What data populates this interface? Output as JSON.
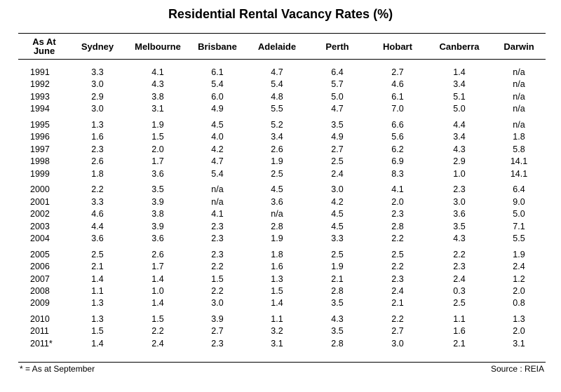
{
  "chart_data": {
    "type": "table",
    "title": "Residential Rental Vacancy Rates (%)",
    "columns": [
      "As At June",
      "Sydney",
      "Melbourne",
      "Brisbane",
      "Adelaide",
      "Perth",
      "Hobart",
      "Canberra",
      "Darwin"
    ],
    "groups": [
      [
        [
          "1991",
          "3.3",
          "4.1",
          "6.1",
          "4.7",
          "6.4",
          "2.7",
          "1.4",
          "n/a"
        ],
        [
          "1992",
          "3.0",
          "4.3",
          "5.4",
          "5.4",
          "5.7",
          "4.6",
          "3.4",
          "n/a"
        ],
        [
          "1993",
          "2.9",
          "3.8",
          "6.0",
          "4.8",
          "5.0",
          "6.1",
          "5.1",
          "n/a"
        ],
        [
          "1994",
          "3.0",
          "3.1",
          "4.9",
          "5.5",
          "4.7",
          "7.0",
          "5.0",
          "n/a"
        ]
      ],
      [
        [
          "1995",
          "1.3",
          "1.9",
          "4.5",
          "5.2",
          "3.5",
          "6.6",
          "4.4",
          "n/a"
        ],
        [
          "1996",
          "1.6",
          "1.5",
          "4.0",
          "3.4",
          "4.9",
          "5.6",
          "3.4",
          "1.8"
        ],
        [
          "1997",
          "2.3",
          "2.0",
          "4.2",
          "2.6",
          "2.7",
          "6.2",
          "4.3",
          "5.8"
        ],
        [
          "1998",
          "2.6",
          "1.7",
          "4.7",
          "1.9",
          "2.5",
          "6.9",
          "2.9",
          "14.1"
        ],
        [
          "1999",
          "1.8",
          "3.6",
          "5.4",
          "2.5",
          "2.4",
          "8.3",
          "1.0",
          "14.1"
        ]
      ],
      [
        [
          "2000",
          "2.2",
          "3.5",
          "n/a",
          "4.5",
          "3.0",
          "4.1",
          "2.3",
          "6.4"
        ],
        [
          "2001",
          "3.3",
          "3.9",
          "n/a",
          "3.6",
          "4.2",
          "2.0",
          "3.0",
          "9.0"
        ],
        [
          "2002",
          "4.6",
          "3.8",
          "4.1",
          "n/a",
          "4.5",
          "2.3",
          "3.6",
          "5.0"
        ],
        [
          "2003",
          "4.4",
          "3.9",
          "2.3",
          "2.8",
          "4.5",
          "2.8",
          "3.5",
          "7.1"
        ],
        [
          "2004",
          "3.6",
          "3.6",
          "2.3",
          "1.9",
          "3.3",
          "2.2",
          "4.3",
          "5.5"
        ]
      ],
      [
        [
          "2005",
          "2.5",
          "2.6",
          "2.3",
          "1.8",
          "2.5",
          "2.5",
          "2.2",
          "1.9"
        ],
        [
          "2006",
          "2.1",
          "1.7",
          "2.2",
          "1.6",
          "1.9",
          "2.2",
          "2.3",
          "2.4"
        ],
        [
          "2007",
          "1.4",
          "1.4",
          "1.5",
          "1.3",
          "2.1",
          "2.3",
          "2.4",
          "1.2"
        ],
        [
          "2008",
          "1.1",
          "1.0",
          "2.2",
          "1.5",
          "2.8",
          "2.4",
          "0.3",
          "2.0"
        ],
        [
          "2009",
          "1.3",
          "1.4",
          "3.0",
          "1.4",
          "3.5",
          "2.1",
          "2.5",
          "0.8"
        ]
      ],
      [
        [
          "2010",
          "1.3",
          "1.5",
          "3.9",
          "1.1",
          "4.3",
          "2.2",
          "1.1",
          "1.3"
        ],
        [
          "2011",
          "1.5",
          "2.2",
          "2.7",
          "3.2",
          "3.5",
          "2.7",
          "1.6",
          "2.0"
        ],
        [
          "2011*",
          "1.4",
          "2.4",
          "2.3",
          "3.1",
          "2.8",
          "3.0",
          "2.1",
          "3.1"
        ]
      ]
    ],
    "footnote": "* = As at September",
    "source": "Source : REIA"
  }
}
